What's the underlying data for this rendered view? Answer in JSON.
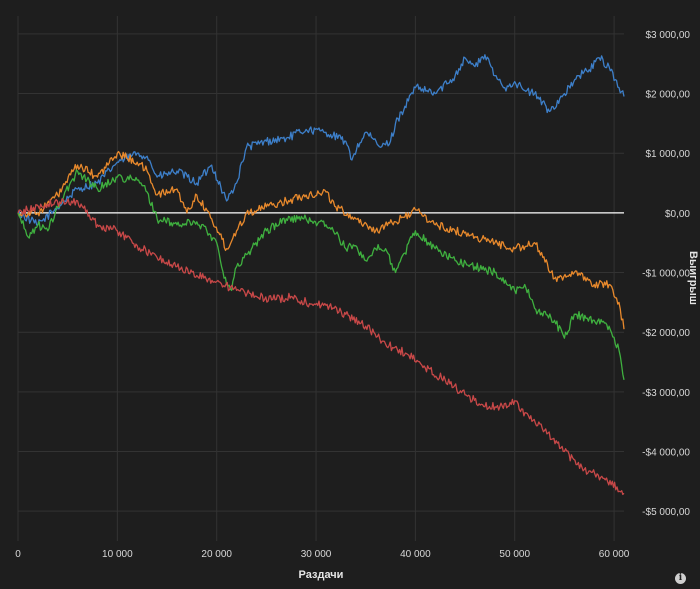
{
  "chart_data": {
    "type": "line",
    "title": "",
    "xlabel": "Раздачи",
    "ylabel": "Выигрыш",
    "xlim": [
      0,
      61000
    ],
    "ylim": [
      -5500,
      3300
    ],
    "x_ticks": [
      0,
      10000,
      20000,
      30000,
      40000,
      50000,
      60000
    ],
    "x_tick_labels": [
      "0",
      "10 000",
      "20 000",
      "30 000",
      "40 000",
      "50 000",
      "60 000"
    ],
    "y_ticks": [
      3000,
      2000,
      1000,
      0,
      -1000,
      -2000,
      -3000,
      -4000,
      -5000
    ],
    "y_tick_labels": [
      "$3 000,00",
      "$2 000,00",
      "$1 000,00",
      "$0,00",
      "-$1 000,00",
      "-$2 000,00",
      "-$3 000,00",
      "-$4 000,00",
      "-$5 000,00"
    ],
    "grid": true,
    "legend": "none",
    "zero_line_color": "#ffffff",
    "series": [
      {
        "color": "#3d7fc9",
        "x": [
          0,
          2000,
          4000,
          6000,
          8000,
          10000,
          12000,
          13000,
          14000,
          16000,
          18000,
          19500,
          21000,
          22000,
          23000,
          25000,
          27000,
          29000,
          31000,
          33000,
          33500,
          35000,
          36500,
          37500,
          38000,
          40000,
          42000,
          44000,
          45000,
          46000,
          47000,
          48000,
          49000,
          50000,
          51000,
          52000,
          53500,
          55000,
          56500,
          57500,
          58500,
          59500,
          60500,
          61000
        ],
        "y": [
          0,
          -200,
          100,
          400,
          500,
          850,
          1000,
          950,
          600,
          700,
          500,
          800,
          200,
          500,
          1100,
          1200,
          1250,
          1400,
          1350,
          1200,
          900,
          1350,
          1100,
          1200,
          1500,
          2100,
          2000,
          2300,
          2600,
          2450,
          2650,
          2300,
          2100,
          2200,
          2050,
          2000,
          1700,
          2000,
          2300,
          2400,
          2600,
          2450,
          2100,
          1950
        ]
      },
      {
        "color": "#e8892c",
        "x": [
          0,
          2000,
          4000,
          6000,
          8000,
          10000,
          12000,
          13000,
          14000,
          16000,
          17000,
          18000,
          19500,
          21000,
          22000,
          23000,
          25000,
          27000,
          29000,
          31000,
          32000,
          34000,
          36000,
          38000,
          40000,
          42000,
          44000,
          46000,
          48000,
          50000,
          52000,
          54000,
          56000,
          58000,
          59500,
          60500,
          61000
        ],
        "y": [
          0,
          0,
          300,
          800,
          600,
          1000,
          850,
          700,
          300,
          400,
          0,
          300,
          -100,
          -600,
          -300,
          0,
          100,
          200,
          300,
          350,
          100,
          -100,
          -300,
          -150,
          50,
          -200,
          -300,
          -400,
          -500,
          -600,
          -500,
          -1100,
          -1000,
          -1200,
          -1200,
          -1500,
          -1950
        ]
      },
      {
        "color": "#3fb03f",
        "x": [
          0,
          1000,
          2000,
          3000,
          4000,
          6000,
          8000,
          10000,
          12000,
          13000,
          14000,
          16000,
          18000,
          19000,
          20000,
          21000,
          21500,
          22000,
          23000,
          25000,
          27000,
          29000,
          31000,
          32000,
          33000,
          34000,
          35000,
          36000,
          37000,
          38000,
          40000,
          42000,
          44000,
          46000,
          48000,
          50000,
          51000,
          52000,
          54000,
          55000,
          56000,
          58000,
          59500,
          60500,
          61000
        ],
        "y": [
          0,
          -400,
          -200,
          -300,
          100,
          700,
          400,
          600,
          550,
          350,
          -100,
          -200,
          -150,
          -300,
          -500,
          -1200,
          -1300,
          -900,
          -700,
          -300,
          -100,
          -100,
          -200,
          -350,
          -600,
          -550,
          -800,
          -600,
          -600,
          -1000,
          -300,
          -600,
          -800,
          -900,
          -1000,
          -1300,
          -1200,
          -1600,
          -1800,
          -2100,
          -1700,
          -1800,
          -1900,
          -2300,
          -2800
        ]
      },
      {
        "color": "#c84848",
        "x": [
          0,
          3000,
          6000,
          8000,
          10000,
          12000,
          14000,
          16000,
          18000,
          20000,
          22000,
          24000,
          26000,
          27500,
          29000,
          31000,
          33000,
          35000,
          37000,
          39000,
          41000,
          43000,
          45000,
          47000,
          48500,
          50000,
          51500,
          53000,
          55000,
          57000,
          59000,
          61000
        ],
        "y": [
          0,
          150,
          200,
          -200,
          -300,
          -550,
          -750,
          -900,
          -1050,
          -1150,
          -1300,
          -1400,
          -1450,
          -1400,
          -1500,
          -1550,
          -1700,
          -1900,
          -2200,
          -2350,
          -2600,
          -2800,
          -3050,
          -3250,
          -3250,
          -3150,
          -3450,
          -3650,
          -4000,
          -4300,
          -4450,
          -4700
        ]
      }
    ]
  }
}
